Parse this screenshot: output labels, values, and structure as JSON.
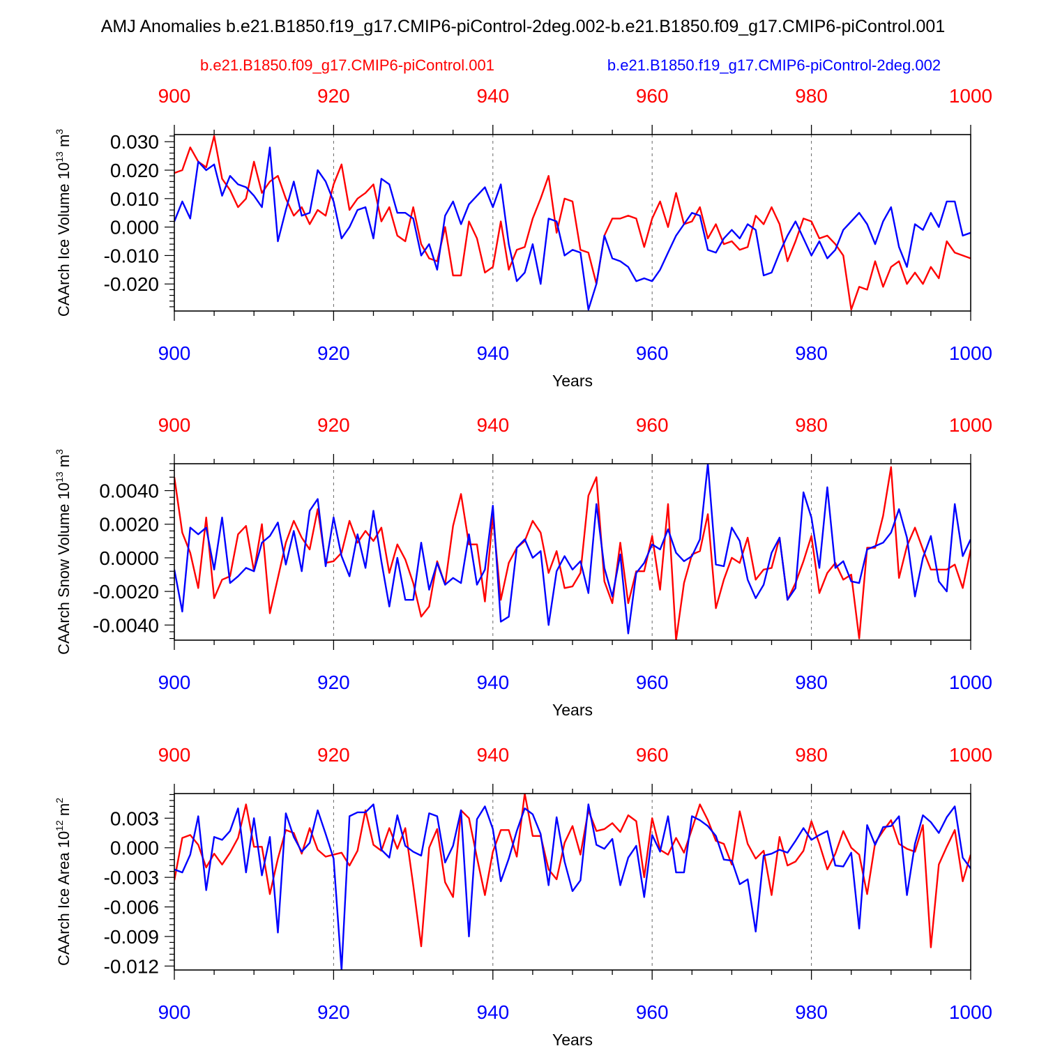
{
  "title": "AMJ Anomalies b.e21.B1850.f19_g17.CMIP6-piControl-2deg.002-b.e21.B1850.f09_g17.CMIP6-piControl.001",
  "legend": {
    "red": "b.e21.B1850.f09_g17.CMIP6-piControl.001",
    "blue": "b.e21.B1850.f19_g17.CMIP6-piControl-2deg.002"
  },
  "colors": {
    "red": "#ff0000",
    "blue": "#0000ff",
    "axis": "#000000",
    "grid": "#666666"
  },
  "chart_data": [
    {
      "type": "line",
      "ylabel_main": "CAArch Ice Volume 10",
      "ylabel_exp": "13",
      "ylabel_unit": " m",
      "ylabel_unit_exp": "3",
      "xlabel": "Years",
      "xlim": [
        900,
        1000
      ],
      "ylim": [
        -0.0295,
        0.0325
      ],
      "xticks": [
        "900",
        "920",
        "940",
        "960",
        "980",
        "1000"
      ],
      "yticks": [
        {
          "v": 0.03,
          "label": "0.030"
        },
        {
          "v": 0.02,
          "label": "0.020"
        },
        {
          "v": 0.01,
          "label": "0.010"
        },
        {
          "v": 0.0,
          "label": "0.000"
        },
        {
          "v": -0.01,
          "label": "-0.010"
        },
        {
          "v": -0.02,
          "label": "-0.020"
        }
      ],
      "series": [
        {
          "name": "b.e21.B1850.f09_g17.CMIP6-piControl.001",
          "color": "red",
          "start": 900,
          "values": [
            0.019,
            0.02,
            0.028,
            0.023,
            0.021,
            0.032,
            0.017,
            0.013,
            0.007,
            0.01,
            0.023,
            0.012,
            0.016,
            0.018,
            0.01,
            0.004,
            0.007,
            0.001,
            0.006,
            0.004,
            0.015,
            0.022,
            0.006,
            0.01,
            0.012,
            0.015,
            0.002,
            0.007,
            -0.003,
            -0.005,
            0.007,
            -0.006,
            -0.011,
            -0.012,
            0.0,
            -0.017,
            -0.017,
            0.002,
            -0.004,
            -0.016,
            -0.014,
            0.002,
            -0.015,
            -0.008,
            -0.007,
            0.003,
            0.01,
            0.018,
            -0.002,
            0.01,
            0.009,
            -0.008,
            -0.009,
            -0.02,
            -0.003,
            0.003,
            0.003,
            0.004,
            0.003,
            -0.007,
            0.003,
            0.009,
            0.0,
            0.012,
            0.001,
            0.002,
            0.007,
            -0.004,
            0.001,
            -0.006,
            -0.005,
            -0.008,
            -0.007,
            0.004,
            0.001,
            0.007,
            0.001,
            -0.012,
            -0.005,
            0.003,
            0.002,
            -0.004,
            -0.003,
            -0.006,
            -0.01,
            -0.029,
            -0.021,
            -0.022,
            -0.012,
            -0.021,
            -0.014,
            -0.012,
            -0.02,
            -0.016,
            -0.02,
            -0.014,
            -0.018,
            -0.005,
            -0.009,
            -0.01,
            -0.011
          ]
        },
        {
          "name": "b.e21.B1850.f19_g17.CMIP6-piControl-2deg.002",
          "color": "blue",
          "start": 900,
          "values": [
            0.002,
            0.009,
            0.003,
            0.023,
            0.02,
            0.022,
            0.011,
            0.018,
            0.015,
            0.014,
            0.011,
            0.007,
            0.028,
            -0.005,
            0.006,
            0.016,
            0.004,
            0.005,
            0.02,
            0.016,
            0.009,
            -0.004,
            0.0,
            0.006,
            0.007,
            -0.004,
            0.017,
            0.015,
            0.005,
            0.005,
            0.003,
            -0.01,
            -0.006,
            -0.015,
            0.004,
            0.009,
            0.001,
            0.008,
            0.011,
            0.014,
            0.007,
            0.015,
            -0.006,
            -0.019,
            -0.016,
            -0.006,
            -0.02,
            0.003,
            0.002,
            -0.01,
            -0.008,
            -0.009,
            -0.029,
            -0.02,
            -0.003,
            -0.011,
            -0.012,
            -0.014,
            -0.019,
            -0.018,
            -0.019,
            -0.015,
            -0.009,
            -0.003,
            0.001,
            0.005,
            0.004,
            -0.008,
            -0.009,
            -0.004,
            -0.001,
            -0.004,
            0.001,
            -0.001,
            -0.017,
            -0.016,
            -0.009,
            -0.003,
            0.002,
            -0.004,
            -0.01,
            -0.005,
            -0.011,
            -0.008,
            -0.001,
            0.002,
            0.005,
            0.001,
            -0.006,
            0.002,
            0.007,
            -0.007,
            -0.014,
            0.001,
            -0.001,
            0.005,
            0.0,
            0.009,
            0.009,
            -0.003,
            -0.002
          ]
        }
      ]
    },
    {
      "type": "line",
      "ylabel_main": "CAArch Snow Volume 10",
      "ylabel_exp": "13",
      "ylabel_unit": " m",
      "ylabel_unit_exp": "3",
      "xlabel": "Years",
      "xlim": [
        900,
        1000
      ],
      "ylim": [
        -0.0049,
        0.0056
      ],
      "xticks": [
        "900",
        "920",
        "940",
        "960",
        "980",
        "1000"
      ],
      "yticks": [
        {
          "v": 0.004,
          "label": "0.0040"
        },
        {
          "v": 0.002,
          "label": "0.0020"
        },
        {
          "v": 0.0,
          "label": "0.0000"
        },
        {
          "v": -0.002,
          "label": "-0.0020"
        },
        {
          "v": -0.004,
          "label": "-0.0040"
        }
      ],
      "series": [
        {
          "name": "b.e21.B1850.f09_g17.CMIP6-piControl.001",
          "color": "red",
          "start": 900,
          "values": [
            0.0048,
            0.0015,
            0.0003,
            -0.0018,
            0.0024,
            -0.0024,
            -0.0013,
            -0.0011,
            0.0014,
            0.0019,
            -0.0008,
            0.002,
            -0.0033,
            -0.0012,
            0.0009,
            0.0022,
            0.0012,
            0.0005,
            0.0029,
            -0.0003,
            -0.0002,
            0.0003,
            0.0022,
            0.0009,
            0.0016,
            0.001,
            0.0018,
            -0.0009,
            0.0008,
            -0.0001,
            -0.0015,
            -0.0035,
            -0.0029,
            -0.0002,
            -0.0016,
            0.0019,
            0.0038,
            0.0008,
            0.0008,
            -0.0026,
            0.0025,
            -0.0025,
            -0.0003,
            0.0006,
            0.001,
            0.0022,
            0.0015,
            -0.0009,
            0.0004,
            -0.0018,
            -0.0017,
            -0.0009,
            0.0037,
            0.0048,
            -0.0014,
            -0.0027,
            0.0009,
            -0.0027,
            -0.0008,
            -0.0008,
            0.0013,
            -0.0019,
            0.0032,
            -0.0049,
            -0.0015,
            0.0002,
            0.0004,
            0.0026,
            -0.003,
            -0.0013,
            0.0,
            -0.0003,
            0.0012,
            -0.0013,
            -0.0007,
            -0.0006,
            0.0012,
            -0.0025,
            -0.0015,
            -0.0002,
            0.0013,
            -0.0021,
            -0.0009,
            -0.0003,
            -0.0013,
            -0.001,
            -0.0048,
            0.0006,
            0.0006,
            0.0025,
            0.0054,
            -0.0012,
            0.0007,
            0.0018,
            0.0005,
            -0.0007,
            -0.0007,
            -0.0007,
            -0.0004,
            -0.0018,
            0.0005
          ]
        },
        {
          "name": "b.e21.B1850.f19_g17.CMIP6-piControl-2deg.002",
          "color": "blue",
          "start": 900,
          "values": [
            -0.0007,
            -0.0032,
            0.0018,
            0.0014,
            0.0018,
            -0.0007,
            0.0024,
            -0.0015,
            -0.0011,
            -0.0006,
            -0.0008,
            0.0009,
            0.0013,
            0.0021,
            -0.0004,
            0.0016,
            -0.0008,
            0.0028,
            0.0035,
            -0.0005,
            0.0024,
            0.0001,
            -0.0011,
            0.0014,
            -0.0006,
            0.0028,
            -0.0002,
            -0.0029,
            0.0,
            -0.0025,
            -0.0025,
            0.0009,
            -0.0019,
            -0.0003,
            -0.0016,
            -0.0012,
            -0.0015,
            0.0014,
            -0.0016,
            -0.0007,
            0.0031,
            -0.0038,
            -0.0035,
            0.0006,
            0.0011,
            0.0,
            0.0004,
            -0.004,
            -0.0008,
            0.0001,
            -0.0007,
            -0.0002,
            -0.0021,
            0.0032,
            -0.0006,
            -0.0023,
            0.0002,
            -0.0045,
            -0.0009,
            -0.0003,
            0.0008,
            0.0005,
            0.0017,
            0.0003,
            -0.0002,
            0.0001,
            0.0011,
            0.0056,
            -0.0004,
            -0.0005,
            0.0018,
            0.001,
            -0.0013,
            -0.0024,
            -0.0016,
            0.0003,
            0.0012,
            -0.0025,
            -0.0018,
            0.0039,
            0.0024,
            -0.0006,
            0.0042,
            -0.0006,
            -0.0002,
            -0.0014,
            -0.0015,
            0.0005,
            0.0007,
            0.0009,
            0.0015,
            0.0029,
            0.0012,
            -0.0023,
            0.0,
            0.0013,
            -0.0014,
            -0.002,
            0.0032,
            0.0001,
            0.0011
          ]
        }
      ]
    },
    {
      "type": "line",
      "ylabel_main": "CAArch Ice Area 10",
      "ylabel_exp": "12",
      "ylabel_unit": " m",
      "ylabel_unit_exp": "2",
      "xlabel": "Years",
      "xlim": [
        900,
        1000
      ],
      "ylim": [
        -0.0124,
        0.0055
      ],
      "xticks": [
        "900",
        "920",
        "940",
        "960",
        "980",
        "1000"
      ],
      "yticks": [
        {
          "v": 0.003,
          "label": "0.003"
        },
        {
          "v": 0.0,
          "label": "0.000"
        },
        {
          "v": -0.003,
          "label": "-0.003"
        },
        {
          "v": -0.006,
          "label": "-0.006"
        },
        {
          "v": -0.009,
          "label": "-0.009"
        },
        {
          "v": -0.012,
          "label": "-0.012"
        }
      ],
      "series": [
        {
          "name": "b.e21.B1850.f09_g17.CMIP6-piControl.001",
          "color": "red",
          "start": 900,
          "values": [
            -0.0033,
            0.001,
            0.0013,
            0.0003,
            -0.002,
            -0.0006,
            -0.0017,
            -0.0005,
            0.001,
            0.0044,
            0.0001,
            0.0001,
            -0.0047,
            -0.0011,
            0.0018,
            0.0015,
            -0.0006,
            0.002,
            -0.0002,
            -0.0009,
            -0.0007,
            -0.0005,
            -0.0018,
            -0.0003,
            0.0038,
            0.0003,
            -0.0003,
            0.002,
            -0.0001,
            0.002,
            -0.0038,
            -0.01,
            0.0,
            0.0019,
            -0.0035,
            -0.005,
            0.0038,
            0.003,
            -0.001,
            -0.0048,
            -0.0004,
            0.0018,
            0.0018,
            -0.0009,
            0.0055,
            0.0012,
            0.0012,
            -0.0022,
            -0.0032,
            0.0005,
            0.0022,
            -0.0007,
            0.0038,
            0.0017,
            0.0019,
            0.0025,
            0.0016,
            0.0033,
            0.0027,
            -0.003,
            0.003,
            -0.0002,
            -0.0007,
            0.001,
            -0.0005,
            0.0019,
            0.0044,
            0.0028,
            0.0007,
            0.0004,
            -0.0017,
            0.0037,
            0.0004,
            -0.0011,
            -0.0003,
            -0.0048,
            0.0011,
            -0.0018,
            -0.0014,
            -0.0003,
            0.0027,
            0.0004,
            -0.0022,
            -0.0006,
            0.0017,
            0.0,
            -0.0007,
            -0.0047,
            0.0005,
            0.0017,
            0.0028,
            0.0004,
            -0.0001,
            -0.0004,
            0.0023,
            -0.0101,
            -0.0017,
            0.0001,
            0.0018,
            -0.0034,
            -0.0007
          ]
        },
        {
          "name": "b.e21.B1850.f19_g17.CMIP6-piControl-2deg.002",
          "color": "blue",
          "start": 900,
          "values": [
            -0.0022,
            -0.0025,
            -0.0007,
            0.0032,
            -0.0043,
            0.0011,
            0.0008,
            0.0017,
            0.004,
            -0.0025,
            0.003,
            -0.0028,
            0.0011,
            -0.0086,
            0.0035,
            0.0011,
            -0.0004,
            0.0005,
            0.0038,
            0.0014,
            -0.0011,
            -0.0124,
            0.0032,
            0.0036,
            0.0036,
            0.0044,
            -0.0002,
            -0.001,
            0.0033,
            0.0002,
            -0.0004,
            -0.0008,
            0.0035,
            0.0032,
            -0.0015,
            0.0002,
            0.0038,
            -0.009,
            0.0029,
            0.0042,
            0.0019,
            -0.0034,
            -0.0011,
            0.0017,
            0.004,
            0.0034,
            0.0014,
            -0.0038,
            0.0031,
            -0.0014,
            -0.0044,
            -0.0033,
            0.0044,
            0.0003,
            -0.0001,
            0.0009,
            -0.0038,
            -0.001,
            0.0002,
            -0.005,
            0.0013,
            -0.0004,
            0.0032,
            -0.0025,
            -0.0025,
            0.0032,
            0.0028,
            0.0022,
            0.0012,
            -0.0012,
            -0.0013,
            -0.0037,
            -0.0032,
            -0.0085,
            -0.0008,
            -0.0006,
            -0.0002,
            -0.0005,
            0.0007,
            0.002,
            0.0008,
            0.0013,
            0.0017,
            -0.0018,
            -0.0019,
            -0.0005,
            -0.0082,
            0.0023,
            0.0003,
            0.0021,
            0.0022,
            0.0032,
            -0.0048,
            0.0004,
            0.0033,
            0.0026,
            0.0015,
            0.0031,
            0.0042,
            -0.001,
            -0.0021
          ]
        }
      ]
    }
  ]
}
